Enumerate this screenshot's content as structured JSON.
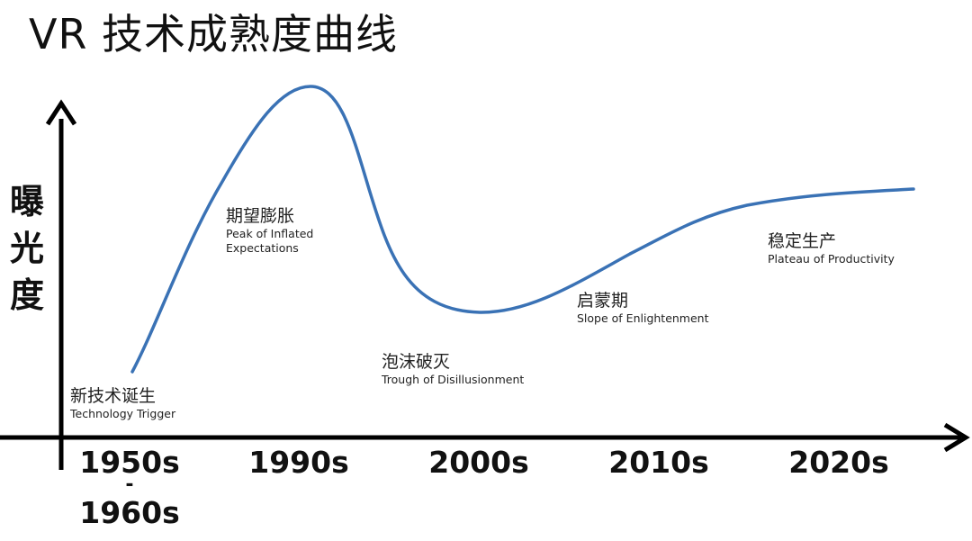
{
  "title": "VR 技术成熟度曲线",
  "y_axis_label": [
    "曝",
    "光",
    "度"
  ],
  "x_ticks": [
    {
      "lines": [
        "1950s",
        "-",
        "1960s"
      ]
    },
    {
      "lines": [
        "1990s"
      ]
    },
    {
      "lines": [
        "2000s"
      ]
    },
    {
      "lines": [
        "2010s"
      ]
    },
    {
      "lines": [
        "2020s"
      ]
    }
  ],
  "phases": [
    {
      "zh": "新技术诞生",
      "en": "Technology Trigger"
    },
    {
      "zh": "期望膨胀",
      "en": [
        "Peak of Inflated",
        "Expectations"
      ]
    },
    {
      "zh": "泡沫破灭",
      "en": "Trough of Disillusionment"
    },
    {
      "zh": "启蒙期",
      "en": "Slope of Enlightenment"
    },
    {
      "zh": "稳定生产",
      "en": "Plateau of Productivity"
    }
  ],
  "colors": {
    "curve": "#3a72b5",
    "axis": "#000000",
    "text": "#111111"
  }
}
